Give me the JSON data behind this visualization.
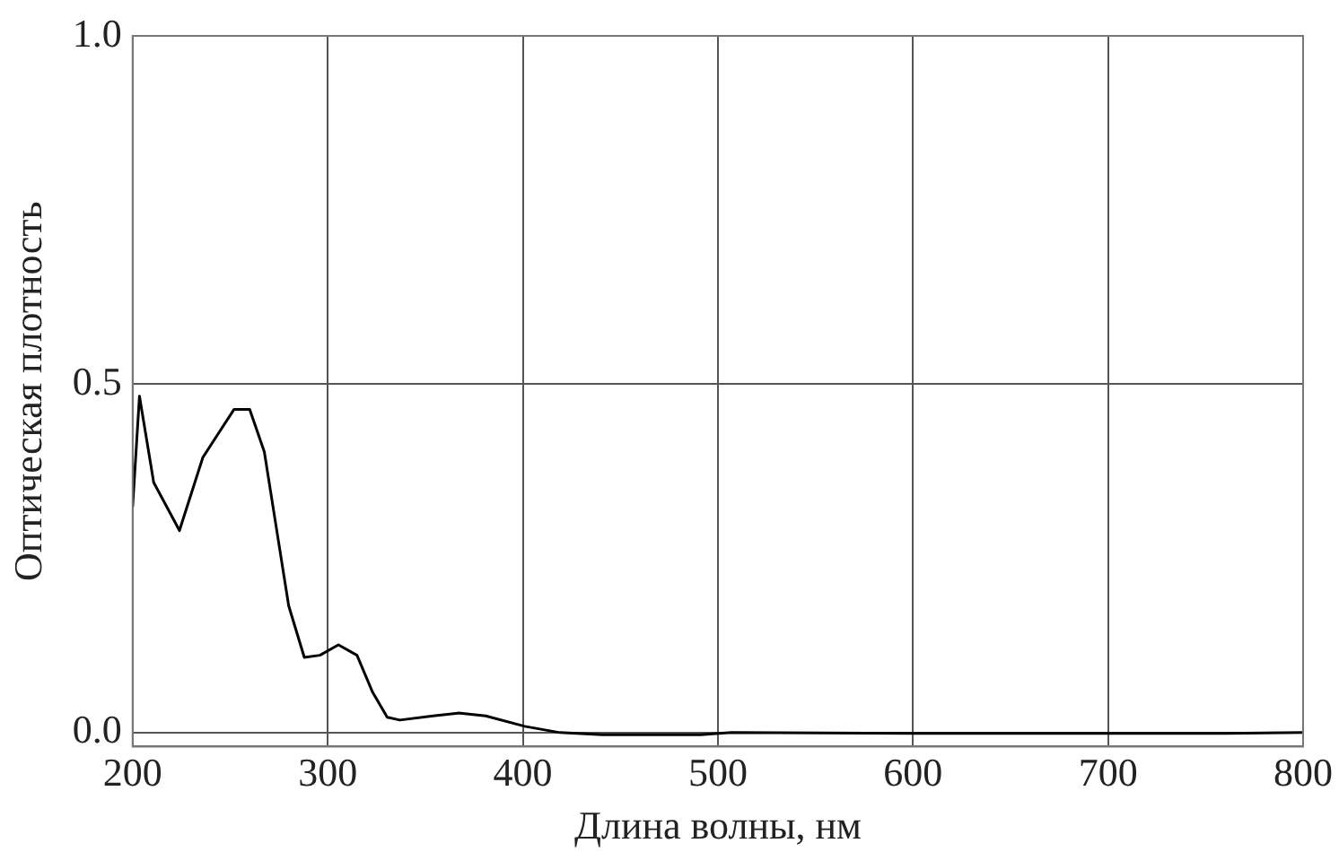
{
  "chart_data": {
    "type": "line",
    "xlabel": "Длина волны, нм",
    "ylabel": "Оптическая плотность",
    "xlim": [
      200,
      800
    ],
    "xticks": [
      200,
      300,
      400,
      500,
      600,
      700,
      800
    ],
    "ylim": [
      -0.02,
      1.0
    ],
    "yticks": [
      {
        "value": 0,
        "label": "0.0"
      },
      {
        "value": 0.5,
        "label": "0.5"
      },
      {
        "value": 1,
        "label": "1.0"
      }
    ],
    "grid": true,
    "legend": false,
    "marker": "none",
    "line_style": "solid",
    "series": [
      {
        "color": "#000000",
        "x": [
          200,
          203.5,
          210.8,
          224,
          236,
          252,
          260,
          267.5,
          274,
          280,
          288,
          296,
          305.5,
          315,
          323,
          330.5,
          337,
          354,
          367,
          381,
          401,
          419,
          441,
          491,
          507,
          600,
          700,
          760,
          800
        ],
        "values": [
          0.324,
          0.483,
          0.359,
          0.29,
          0.395,
          0.464,
          0.464,
          0.403,
          0.288,
          0.182,
          0.108,
          0.111,
          0.126,
          0.111,
          0.058,
          0.022,
          0.018,
          0.024,
          0.028,
          0.024,
          0.009,
          0.0,
          -0.003,
          -0.003,
          0.0,
          -0.001,
          -0.001,
          -0.001,
          0.0
        ]
      }
    ]
  }
}
